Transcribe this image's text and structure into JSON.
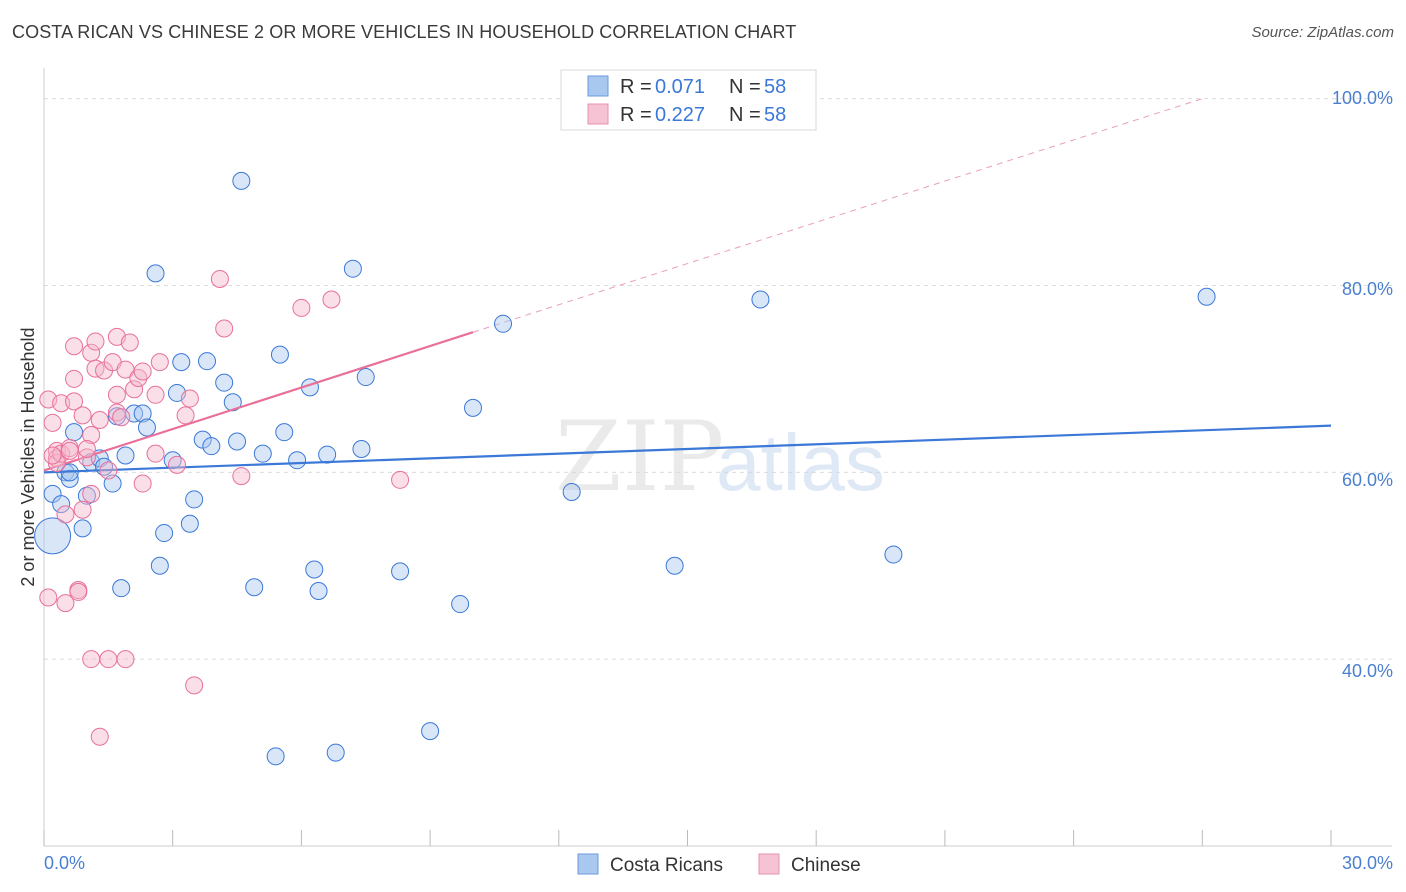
{
  "header": {
    "title": "COSTA RICAN VS CHINESE 2 OR MORE VEHICLES IN HOUSEHOLD CORRELATION CHART",
    "source": "Source: ZipAtlas.com"
  },
  "colors": {
    "blue": "#3b78d8",
    "blue_fill": "#a9c8f0",
    "pink": "#e8709a",
    "pink_fill": "#f5b8cb",
    "tick_blue": "#4a7fd0",
    "grid": "#dcdcdc"
  },
  "chart_data": {
    "type": "scatter",
    "title": "COSTA RICAN VS CHINESE 2 OR MORE VEHICLES IN HOUSEHOLD CORRELATION CHART",
    "xlabel": "",
    "ylabel": "2 or more Vehicles in Household",
    "xlim": [
      0,
      30
    ],
    "ylim": [
      20,
      102
    ],
    "x_tick_labels": [
      "0.0%",
      "30.0%"
    ],
    "y_ticks": [
      40,
      60,
      80,
      100
    ],
    "y_tick_labels": [
      "40.0%",
      "60.0%",
      "80.0%",
      "100.0%"
    ],
    "watermark": {
      "zip": "ZIP",
      "atlas": "atlas"
    },
    "legend": [
      {
        "name": "Costa Ricans",
        "r_label": "R =",
        "r": "0.071",
        "n_label": "N =",
        "n": "58"
      },
      {
        "name": "Chinese",
        "r_label": "R =",
        "r": "0.227",
        "n_label": "N =",
        "n": "58"
      }
    ],
    "series": [
      {
        "name": "Costa Ricans",
        "color": "#3b78d8",
        "trend": {
          "x0": 0,
          "y0": 60.0,
          "x1": 30,
          "y1": 65.0
        },
        "points": [
          [
            0.2,
            53.2
          ],
          [
            0.2,
            57.7
          ],
          [
            0.4,
            56.6
          ],
          [
            0.5,
            60.0
          ],
          [
            0.6,
            59.3
          ],
          [
            0.7,
            64.3
          ],
          [
            0.9,
            54.0
          ],
          [
            1.0,
            57.5
          ],
          [
            1.1,
            61.1
          ],
          [
            1.3,
            61.5
          ],
          [
            1.4,
            60.6
          ],
          [
            1.6,
            58.8
          ],
          [
            1.7,
            66.0
          ],
          [
            1.8,
            47.6
          ],
          [
            1.9,
            61.8
          ],
          [
            2.1,
            66.3
          ],
          [
            2.3,
            66.3
          ],
          [
            2.4,
            64.8
          ],
          [
            2.6,
            81.3
          ],
          [
            2.7,
            50.0
          ],
          [
            2.8,
            53.5
          ],
          [
            3.0,
            61.3
          ],
          [
            3.1,
            68.5
          ],
          [
            3.2,
            71.8
          ],
          [
            3.4,
            54.5
          ],
          [
            3.5,
            57.1
          ],
          [
            3.7,
            63.5
          ],
          [
            3.8,
            71.9
          ],
          [
            3.9,
            62.8
          ],
          [
            4.2,
            69.6
          ],
          [
            4.4,
            67.5
          ],
          [
            4.5,
            63.3
          ],
          [
            4.6,
            91.2
          ],
          [
            4.9,
            47.7
          ],
          [
            5.1,
            62.0
          ],
          [
            5.4,
            29.6
          ],
          [
            5.5,
            72.6
          ],
          [
            5.6,
            64.3
          ],
          [
            5.9,
            61.3
          ],
          [
            6.2,
            69.1
          ],
          [
            6.3,
            49.6
          ],
          [
            6.4,
            47.3
          ],
          [
            6.6,
            61.9
          ],
          [
            6.8,
            30.0
          ],
          [
            7.2,
            81.8
          ],
          [
            7.4,
            62.5
          ],
          [
            7.5,
            70.2
          ],
          [
            8.3,
            49.4
          ],
          [
            9.0,
            32.3
          ],
          [
            9.7,
            45.9
          ],
          [
            10.0,
            66.9
          ],
          [
            10.7,
            75.9
          ],
          [
            12.3,
            57.9
          ],
          [
            14.7,
            50.0
          ],
          [
            16.7,
            78.5
          ],
          [
            19.8,
            51.2
          ],
          [
            27.1,
            78.8
          ],
          [
            0.6,
            60.0
          ]
        ]
      },
      {
        "name": "Chinese",
        "color": "#e8709a",
        "trend": {
          "x0": 0,
          "y0": 60.2,
          "x1": 10,
          "y1": 75.0
        },
        "trend_ext": {
          "x0": 10,
          "y0": 75.0,
          "x1": 27,
          "y1": 100.0
        },
        "points": [
          [
            0.1,
            46.6
          ],
          [
            0.1,
            67.8
          ],
          [
            0.2,
            65.3
          ],
          [
            0.3,
            62.3
          ],
          [
            0.3,
            61.5
          ],
          [
            0.3,
            61.0
          ],
          [
            0.4,
            62.0
          ],
          [
            0.4,
            67.4
          ],
          [
            0.5,
            55.5
          ],
          [
            0.5,
            46.0
          ],
          [
            0.6,
            62.6
          ],
          [
            0.6,
            62.3
          ],
          [
            0.7,
            73.5
          ],
          [
            0.7,
            70.0
          ],
          [
            0.7,
            67.6
          ],
          [
            0.8,
            47.4
          ],
          [
            0.8,
            47.2
          ],
          [
            0.9,
            56.0
          ],
          [
            0.9,
            66.1
          ],
          [
            1.0,
            61.6
          ],
          [
            1.1,
            72.8
          ],
          [
            1.1,
            57.7
          ],
          [
            1.1,
            64.0
          ],
          [
            1.1,
            40.0
          ],
          [
            1.2,
            71.1
          ],
          [
            1.2,
            74.0
          ],
          [
            1.3,
            65.6
          ],
          [
            1.3,
            31.7
          ],
          [
            1.4,
            70.9
          ],
          [
            1.5,
            60.2
          ],
          [
            1.5,
            40.0
          ],
          [
            1.6,
            71.8
          ],
          [
            1.7,
            66.4
          ],
          [
            1.7,
            68.3
          ],
          [
            1.7,
            74.5
          ],
          [
            1.8,
            65.9
          ],
          [
            1.9,
            71.0
          ],
          [
            1.9,
            40.0
          ],
          [
            2.0,
            73.9
          ],
          [
            2.1,
            68.9
          ],
          [
            2.2,
            70.1
          ],
          [
            2.3,
            70.8
          ],
          [
            2.3,
            58.8
          ],
          [
            2.6,
            68.3
          ],
          [
            2.6,
            62.0
          ],
          [
            2.7,
            71.8
          ],
          [
            3.1,
            60.8
          ],
          [
            3.3,
            66.1
          ],
          [
            3.4,
            67.9
          ],
          [
            3.5,
            37.2
          ],
          [
            4.1,
            80.7
          ],
          [
            4.2,
            75.4
          ],
          [
            4.6,
            59.6
          ],
          [
            6.0,
            77.6
          ],
          [
            6.7,
            78.5
          ],
          [
            8.3,
            59.2
          ],
          [
            0.2,
            61.8
          ],
          [
            1.0,
            62.5
          ]
        ]
      }
    ]
  }
}
